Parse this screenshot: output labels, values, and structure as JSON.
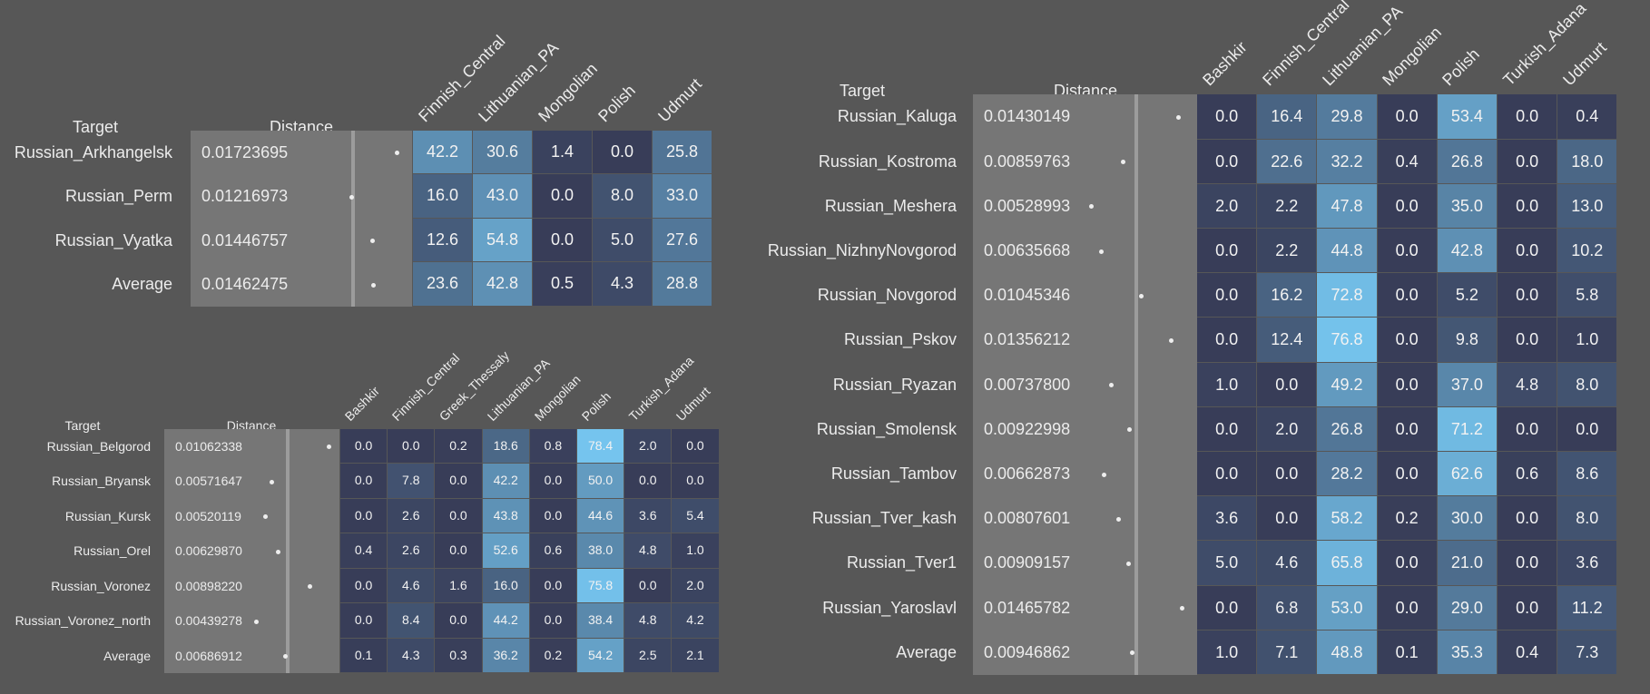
{
  "chart_data": [
    {
      "type": "table",
      "target_header": "Target",
      "distance_header": "Distance",
      "columns": [
        "Finnish_Central",
        "Lithuanian_PA",
        "Mongolian",
        "Polish",
        "Udmurt"
      ],
      "rows": [
        {
          "target": "Russian_Arkhangelsk",
          "distance": "0.01723695",
          "values": [
            42.2,
            30.6,
            1.4,
            0.0,
            25.8
          ]
        },
        {
          "target": "Russian_Perm",
          "distance": "0.01216973",
          "values": [
            16.0,
            43.0,
            0.0,
            8.0,
            33.0
          ]
        },
        {
          "target": "Russian_Vyatka",
          "distance": "0.01446757",
          "values": [
            12.6,
            54.8,
            0.0,
            5.0,
            27.6
          ]
        },
        {
          "target": "Average",
          "distance": "0.01462475",
          "values": [
            23.6,
            42.8,
            0.5,
            4.3,
            28.8
          ]
        }
      ]
    },
    {
      "type": "table",
      "target_header": "Target",
      "distance_header": "Distance",
      "columns": [
        "Bashkir",
        "Finnish_Central",
        "Greek_Thessaly",
        "Lithuanian_PA",
        "Mongolian",
        "Polish",
        "Turkish_Adana",
        "Udmurt"
      ],
      "rows": [
        {
          "target": "Russian_Belgorod",
          "distance": "0.01062338",
          "values": [
            0.0,
            0.0,
            0.2,
            18.6,
            0.8,
            78.4,
            2.0,
            0.0
          ]
        },
        {
          "target": "Russian_Bryansk",
          "distance": "0.00571647",
          "values": [
            0.0,
            7.8,
            0.0,
            42.2,
            0.0,
            50.0,
            0.0,
            0.0
          ]
        },
        {
          "target": "Russian_Kursk",
          "distance": "0.00520119",
          "values": [
            0.0,
            2.6,
            0.0,
            43.8,
            0.0,
            44.6,
            3.6,
            5.4
          ]
        },
        {
          "target": "Russian_Orel",
          "distance": "0.00629870",
          "values": [
            0.4,
            2.6,
            0.0,
            52.6,
            0.6,
            38.0,
            4.8,
            1.0
          ]
        },
        {
          "target": "Russian_Voronez",
          "distance": "0.00898220",
          "values": [
            0.0,
            4.6,
            1.6,
            16.0,
            0.0,
            75.8,
            0.0,
            2.0
          ]
        },
        {
          "target": "Russian_Voronez_north",
          "distance": "0.00439278",
          "values": [
            0.0,
            8.4,
            0.0,
            44.2,
            0.0,
            38.4,
            4.8,
            4.2
          ]
        },
        {
          "target": "Average",
          "distance": "0.00686912",
          "values": [
            0.1,
            4.3,
            0.3,
            36.2,
            0.2,
            54.2,
            2.5,
            2.1
          ]
        }
      ]
    },
    {
      "type": "table",
      "target_header": "Target",
      "distance_header": "Distance",
      "columns": [
        "Bashkir",
        "Finnish_Central",
        "Lithuanian_PA",
        "Mongolian",
        "Polish",
        "Turkish_Adana",
        "Udmurt"
      ],
      "rows": [
        {
          "target": "Russian_Kaluga",
          "distance": "0.01430149",
          "values": [
            0.0,
            16.4,
            29.8,
            0.0,
            53.4,
            0.0,
            0.4
          ]
        },
        {
          "target": "Russian_Kostroma",
          "distance": "0.00859763",
          "values": [
            0.0,
            22.6,
            32.2,
            0.4,
            26.8,
            0.0,
            18.0
          ]
        },
        {
          "target": "Russian_Meshera",
          "distance": "0.00528993",
          "values": [
            2.0,
            2.2,
            47.8,
            0.0,
            35.0,
            0.0,
            13.0
          ]
        },
        {
          "target": "Russian_NizhnyNovgorod",
          "distance": "0.00635668",
          "values": [
            0.0,
            2.2,
            44.8,
            0.0,
            42.8,
            0.0,
            10.2
          ]
        },
        {
          "target": "Russian_Novgorod",
          "distance": "0.01045346",
          "values": [
            0.0,
            16.2,
            72.8,
            0.0,
            5.2,
            0.0,
            5.8
          ]
        },
        {
          "target": "Russian_Pskov",
          "distance": "0.01356212",
          "values": [
            0.0,
            12.4,
            76.8,
            0.0,
            9.8,
            0.0,
            1.0
          ]
        },
        {
          "target": "Russian_Ryazan",
          "distance": "0.00737800",
          "values": [
            1.0,
            0.0,
            49.2,
            0.0,
            37.0,
            4.8,
            8.0
          ]
        },
        {
          "target": "Russian_Smolensk",
          "distance": "0.00922998",
          "values": [
            0.0,
            2.0,
            26.8,
            0.0,
            71.2,
            0.0,
            0.0
          ]
        },
        {
          "target": "Russian_Tambov",
          "distance": "0.00662873",
          "values": [
            0.0,
            0.0,
            28.2,
            0.0,
            62.6,
            0.6,
            8.6
          ]
        },
        {
          "target": "Russian_Tver_kash",
          "distance": "0.00807601",
          "values": [
            3.6,
            0.0,
            58.2,
            0.2,
            30.0,
            0.0,
            8.0
          ]
        },
        {
          "target": "Russian_Tver1",
          "distance": "0.00909157",
          "values": [
            5.0,
            4.6,
            65.8,
            0.0,
            21.0,
            0.0,
            3.6
          ]
        },
        {
          "target": "Russian_Yaroslavl",
          "distance": "0.01465782",
          "values": [
            0.0,
            6.8,
            53.0,
            0.0,
            29.0,
            0.0,
            11.2
          ]
        },
        {
          "target": "Average",
          "distance": "0.00946862",
          "values": [
            1.0,
            7.1,
            48.8,
            0.1,
            35.3,
            0.4,
            7.3
          ]
        }
      ]
    }
  ]
}
